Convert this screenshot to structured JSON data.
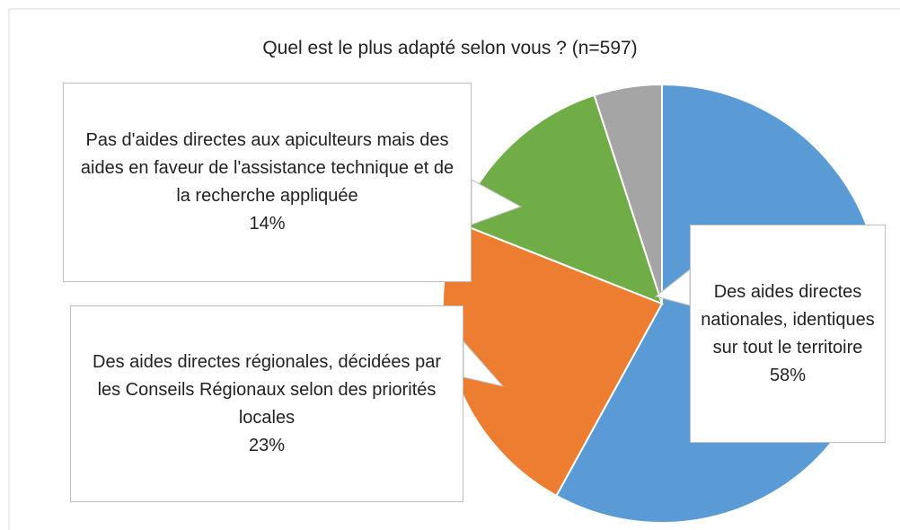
{
  "chart_data": {
    "type": "pie",
    "title": "Quel est le plus adapté selon vous ? (n=597)",
    "categories": [
      "Des aides directes nationales, identiques sur tout le territoire",
      "Des aides directes régionales, décidées par les Conseils Régionaux selon des priorités locales",
      "Pas d'aides directes aux apiculteurs mais des aides en faveur de l'assistance technique et de la recherche appliquée",
      null
    ],
    "values": [
      58,
      23,
      14,
      5
    ],
    "value_labels": [
      "58%",
      "23%",
      "14%",
      null
    ],
    "colors": [
      "#5b9bd5",
      "#ed7d31",
      "#70ad47",
      "#a5a5a5"
    ]
  }
}
